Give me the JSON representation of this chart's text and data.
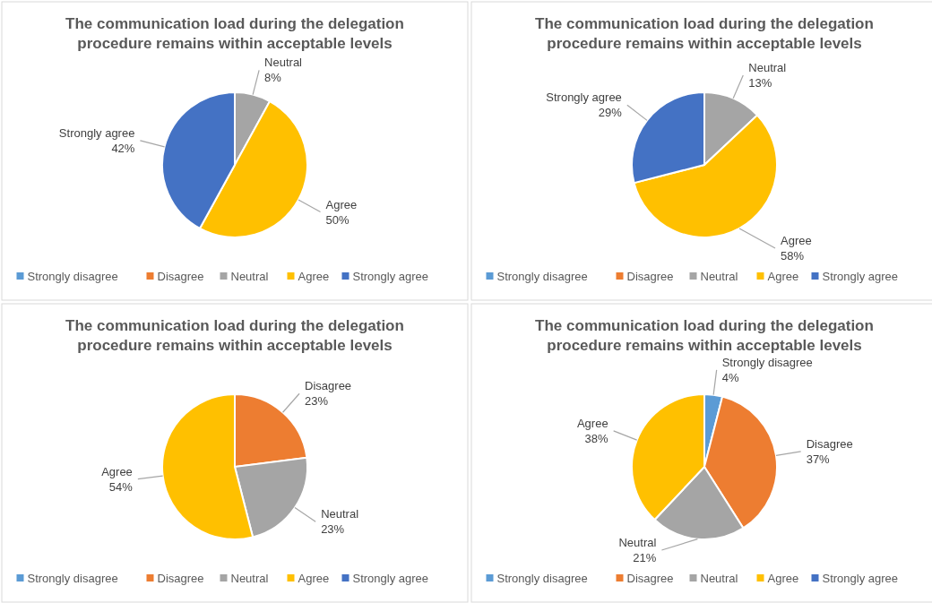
{
  "chart_data": [
    {
      "type": "pie",
      "title": "The communication load during the delegation procedure remains within acceptable levels",
      "categories": [
        "Strongly disagree",
        "Disagree",
        "Neutral",
        "Agree",
        "Strongly agree"
      ],
      "values": [
        0,
        0,
        8,
        50,
        42
      ],
      "value_labels": [
        null,
        null,
        "8%",
        "50%",
        "42%"
      ],
      "colors": [
        "#5b9bd5",
        "#ed7d31",
        "#a5a5a5",
        "#ffc000",
        "#4472c4"
      ],
      "legend": "bottom"
    },
    {
      "type": "pie",
      "title": "The communication load during the delegation procedure remains within acceptable levels",
      "categories": [
        "Strongly disagree",
        "Disagree",
        "Neutral",
        "Agree",
        "Strongly agree"
      ],
      "values": [
        0,
        0,
        13,
        58,
        29
      ],
      "value_labels": [
        null,
        null,
        "13%",
        "58%",
        "29%"
      ],
      "colors": [
        "#5b9bd5",
        "#ed7d31",
        "#a5a5a5",
        "#ffc000",
        "#4472c4"
      ],
      "legend": "bottom"
    },
    {
      "type": "pie",
      "title": "The communication load during the delegation procedure remains within acceptable levels",
      "categories": [
        "Strongly disagree",
        "Disagree",
        "Neutral",
        "Agree",
        "Strongly agree"
      ],
      "values": [
        0,
        23,
        23,
        54,
        0
      ],
      "value_labels": [
        null,
        "23%",
        "23%",
        "54%",
        null
      ],
      "colors": [
        "#5b9bd5",
        "#ed7d31",
        "#a5a5a5",
        "#ffc000",
        "#4472c4"
      ],
      "legend": "bottom"
    },
    {
      "type": "pie",
      "title": "The communication load during the delegation procedure remains within acceptable levels",
      "categories": [
        "Strongly disagree",
        "Disagree",
        "Neutral",
        "Agree",
        "Strongly agree"
      ],
      "values": [
        4,
        37,
        21,
        38,
        0
      ],
      "value_labels": [
        "4%",
        "37%",
        "21%",
        "38%",
        null
      ],
      "colors": [
        "#5b9bd5",
        "#ed7d31",
        "#a5a5a5",
        "#ffc000",
        "#4472c4"
      ],
      "legend": "bottom"
    }
  ]
}
